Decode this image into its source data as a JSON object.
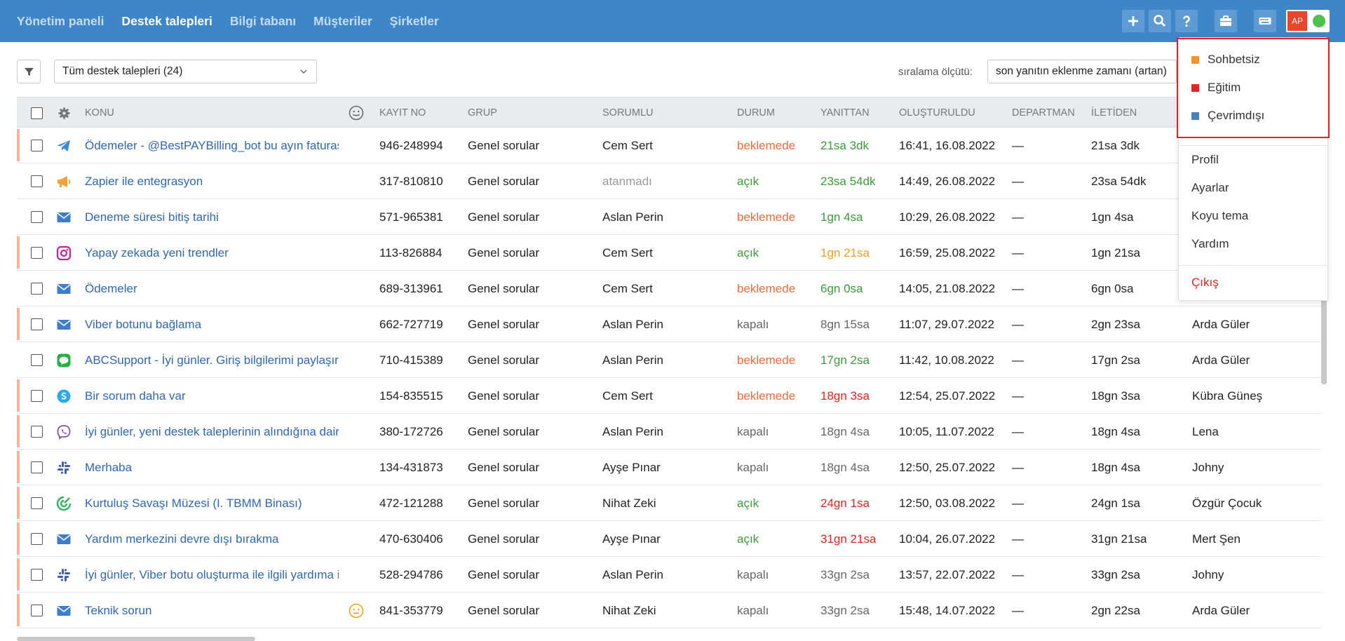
{
  "nav": {
    "items": [
      {
        "label": "Yönetim paneli",
        "active": false
      },
      {
        "label": "Destek talepleri",
        "active": true
      },
      {
        "label": "Bilgi tabanı",
        "active": false
      },
      {
        "label": "Müşteriler",
        "active": false
      },
      {
        "label": "Şirketler",
        "active": false
      }
    ]
  },
  "header": {
    "avatar_initials": "AP",
    "status_color": "#4cc04a",
    "icons": [
      "plus-icon",
      "search-icon",
      "help-icon",
      "briefcase-icon",
      "keyboard-icon"
    ]
  },
  "filter": {
    "selected": "Tüm destek talepleri (24)",
    "sort_label": "sıralama ölçütü:",
    "sort_selected": "son yanıtın eklenme zamanı (artan)"
  },
  "table": {
    "headers": {
      "subject": "KONU",
      "id": "KAYIT NO",
      "group": "GRUP",
      "assignee": "SORUMLU",
      "status": "DURUM",
      "replied": "YANITTAN",
      "created": "OLUŞTURULDU",
      "department": "DEPARTMAN",
      "from": "İLETİDEN"
    },
    "rows": [
      {
        "channel": "telegram-icon",
        "subject": "Ödemeler - @BestPAYBilling_bot bu ayın faturası",
        "id": "946-248994",
        "group": "Genel sorular",
        "assignee": "Cem Sert",
        "status": "beklemede",
        "status_type": "wait",
        "replied": "21sa 3dk",
        "replied_color": "green",
        "created": "16:41, 16.08.2022",
        "department": "—",
        "from": "21sa 3dk",
        "customer": "",
        "stripe": true,
        "mood": false
      },
      {
        "channel": "megaphone-icon",
        "subject": "Zapier ile entegrasyon",
        "id": "317-810810",
        "group": "Genel sorular",
        "assignee": "atanmadı",
        "assignee_unassigned": true,
        "status": "açık",
        "status_type": "open",
        "replied": "23sa 54dk",
        "replied_color": "green",
        "created": "14:49, 26.08.2022",
        "department": "—",
        "from": "23sa 54dk",
        "customer": "",
        "stripe": false,
        "mood": false
      },
      {
        "channel": "email-icon",
        "subject": "Deneme süresi bitiş tarihi",
        "id": "571-965381",
        "group": "Genel sorular",
        "assignee": "Aslan Perin",
        "status": "beklemede",
        "status_type": "wait",
        "replied": "1gn 4sa",
        "replied_color": "green",
        "created": "10:29, 26.08.2022",
        "department": "—",
        "from": "1gn 4sa",
        "customer": "",
        "stripe": false,
        "mood": false
      },
      {
        "channel": "instagram-icon",
        "subject": "Yapay zekada yeni trendler",
        "id": "113-826884",
        "group": "Genel sorular",
        "assignee": "Cem Sert",
        "status": "açık",
        "status_type": "open",
        "replied": "1gn 21sa",
        "replied_color": "orange",
        "created": "16:59, 25.08.2022",
        "department": "—",
        "from": "1gn 21sa",
        "customer": "",
        "stripe": true,
        "mood": false
      },
      {
        "channel": "email-icon",
        "subject": "Ödemeler",
        "id": "689-313961",
        "group": "Genel sorular",
        "assignee": "Cem Sert",
        "status": "beklemede",
        "status_type": "wait",
        "replied": "6gn 0sa",
        "replied_color": "green",
        "created": "14:05, 21.08.2022",
        "department": "—",
        "from": "6gn 0sa",
        "customer": "",
        "stripe": false,
        "mood": false
      },
      {
        "channel": "email-icon",
        "subject": "Viber botunu bağlama",
        "id": "662-727719",
        "group": "Genel sorular",
        "assignee": "Aslan Perin",
        "status": "kapalı",
        "status_type": "closed",
        "replied": "8gn 15sa",
        "replied_color": "gray",
        "created": "11:07, 29.07.2022",
        "department": "—",
        "from": "2gn 23sa",
        "customer": "Arda Güler",
        "stripe": true,
        "mood": false
      },
      {
        "channel": "line-icon",
        "subject": "ABCSupport - İyi günler. Giriş bilgilerimi paylaşır mısınız",
        "id": "710-415389",
        "group": "Genel sorular",
        "assignee": "Aslan Perin",
        "status": "beklemede",
        "status_type": "wait",
        "replied": "17gn 2sa",
        "replied_color": "green",
        "created": "11:42, 10.08.2022",
        "department": "—",
        "from": "17gn 2sa",
        "customer": "Arda Güler",
        "stripe": false,
        "mood": false
      },
      {
        "channel": "skype-icon",
        "subject": "Bir sorum daha var",
        "id": "154-835515",
        "group": "Genel sorular",
        "assignee": "Cem Sert",
        "status": "beklemede",
        "status_type": "wait",
        "replied": "18gn 3sa",
        "replied_color": "red",
        "created": "12:54, 25.07.2022",
        "department": "—",
        "from": "18gn 3sa",
        "customer": "Kübra Güneş",
        "stripe": true,
        "mood": false
      },
      {
        "channel": "viber-icon",
        "subject": "İyi günler, yeni destek taleplerinin alındığına dair bildirim",
        "id": "380-172726",
        "group": "Genel sorular",
        "assignee": "Aslan Perin",
        "status": "kapalı",
        "status_type": "closed",
        "replied": "18gn 4sa",
        "replied_color": "gray",
        "created": "10:05, 11.07.2022",
        "department": "—",
        "from": "18gn 4sa",
        "customer": "Lena",
        "stripe": true,
        "mood": false
      },
      {
        "channel": "slack-icon",
        "subject": "Merhaba",
        "id": "134-431873",
        "group": "Genel sorular",
        "assignee": "Ayşe Pınar",
        "status": "kapalı",
        "status_type": "closed",
        "replied": "18gn 4sa",
        "replied_color": "gray",
        "created": "12:50, 25.07.2022",
        "department": "—",
        "from": "18gn 4sa",
        "customer": "Johny",
        "stripe": true,
        "mood": false
      },
      {
        "channel": "widget-icon",
        "subject": "Kurtuluş Savaşı Müzesi (I. TBMM Binası)",
        "id": "472-121288",
        "group": "Genel sorular",
        "assignee": "Nihat Zeki",
        "status": "açık",
        "status_type": "open",
        "replied": "24gn 1sa",
        "replied_color": "red",
        "created": "12:50, 03.08.2022",
        "department": "—",
        "from": "24gn 1sa",
        "customer": "Özgür Çocuk",
        "stripe": true,
        "mood": false
      },
      {
        "channel": "email-icon",
        "subject": "Yardım merkezini devre dışı bırakma",
        "id": "470-630406",
        "group": "Genel sorular",
        "assignee": "Ayşe Pınar",
        "status": "açık",
        "status_type": "open",
        "replied": "31gn 21sa",
        "replied_color": "red",
        "created": "10:04, 26.07.2022",
        "department": "—",
        "from": "31gn 21sa",
        "customer": "Mert Şen",
        "stripe": true,
        "mood": false
      },
      {
        "channel": "slack-icon",
        "subject": "İyi günler, Viber botu oluşturma ile ilgili yardıma ihtiyacım var",
        "id": "528-294786",
        "group": "Genel sorular",
        "assignee": "Aslan Perin",
        "status": "kapalı",
        "status_type": "closed",
        "replied": "33gn 2sa",
        "replied_color": "gray",
        "created": "13:57, 22.07.2022",
        "department": "—",
        "from": "33gn 2sa",
        "customer": "Johny",
        "stripe": true,
        "mood": false
      },
      {
        "channel": "email-icon",
        "subject": "Teknik sorun",
        "id": "841-353779",
        "group": "Genel sorular",
        "assignee": "Nihat Zeki",
        "status": "kapalı",
        "status_type": "closed",
        "replied": "33gn 2sa",
        "replied_color": "gray",
        "created": "15:48, 14.07.2022",
        "department": "—",
        "from": "2gn 22sa",
        "customer": "Arda Güler",
        "stripe": true,
        "mood": true
      }
    ]
  },
  "dropdown": {
    "statuses": [
      {
        "label": "Sohbetsiz",
        "color": "#f5922b"
      },
      {
        "label": "Eğitim",
        "color": "#e8232a"
      },
      {
        "label": "Çevrimdışı",
        "color": "#4a7fbd"
      }
    ],
    "items": [
      "Profil",
      "Ayarlar",
      "Koyu tema",
      "Yardım"
    ],
    "logout": "Çıkış"
  }
}
